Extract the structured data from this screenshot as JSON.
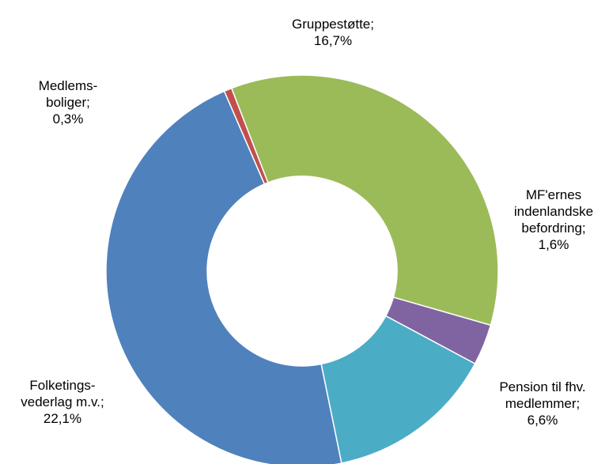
{
  "chart_data": {
    "type": "pie",
    "donut": true,
    "legend": "none",
    "slices": [
      {
        "label_lines": [
          "Gruppestøtte;",
          "16,7%"
        ],
        "value": 16.7,
        "color": "#9bbb59"
      },
      {
        "label_lines": [
          "MF'ernes",
          "indenlandske",
          "befordring;",
          "1,6%"
        ],
        "value": 1.6,
        "color": "#8064a2"
      },
      {
        "label_lines": [
          "Pension til fhv.",
          "medlemmer;",
          "6,6%"
        ],
        "value": 6.6,
        "color": "#4bacc6"
      },
      {
        "label_lines": [
          "Folketings-",
          "vederlag m.v.;",
          "22,1%"
        ],
        "value": 22.1,
        "color": "#4f81bd"
      },
      {
        "label_lines": [
          "Medlems-",
          "boliger;",
          "0,3%"
        ],
        "value": 0.3,
        "color": "#c0504d"
      }
    ]
  }
}
